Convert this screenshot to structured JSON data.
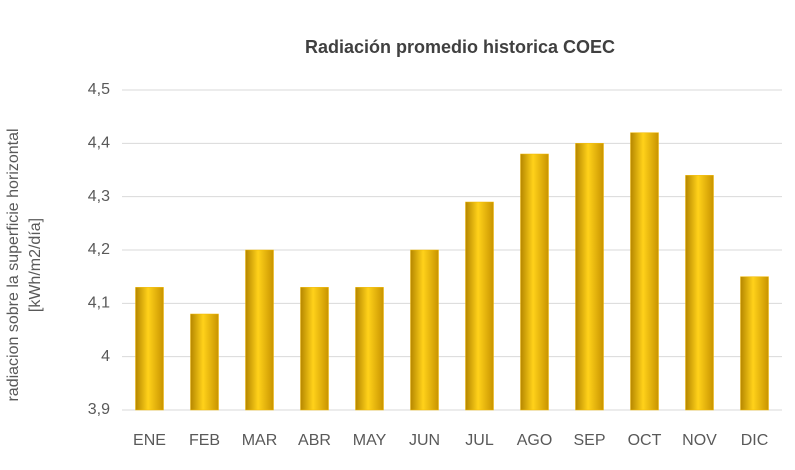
{
  "chart_data": {
    "type": "bar",
    "title": "Radiación promedio historica COEC",
    "ylabel": [
      "radiacion sobre la superficie horizontal",
      "[kWh/m2/día]"
    ],
    "categories": [
      "ENE",
      "FEB",
      "MAR",
      "ABR",
      "MAY",
      "JUN",
      "JUL",
      "AGO",
      "SEP",
      "OCT",
      "NOV",
      "DIC"
    ],
    "values": [
      4.13,
      4.08,
      4.2,
      4.13,
      4.13,
      4.2,
      4.29,
      4.38,
      4.4,
      4.42,
      4.34,
      4.15
    ],
    "color": "#f2b800",
    "ylim": [
      3.9,
      4.5
    ],
    "yticks": [
      {
        "value": 3.9,
        "label": "3,9"
      },
      4,
      {
        "value": 4.1,
        "label": "4,1"
      },
      {
        "value": 4.2,
        "label": "4,2"
      },
      {
        "value": 4.3,
        "label": "4,3"
      },
      {
        "value": 4.4,
        "label": "4,4"
      },
      {
        "value": 4.5,
        "label": "4,5"
      }
    ],
    "grid": true
  }
}
